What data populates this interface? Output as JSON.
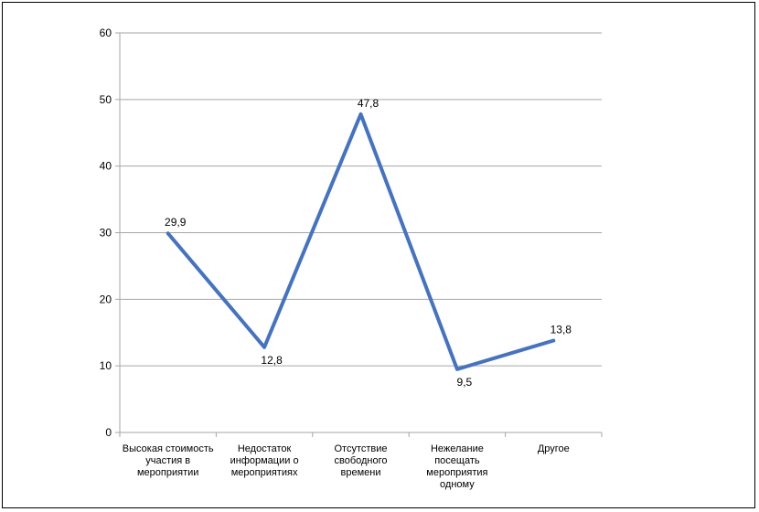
{
  "chart_data": {
    "type": "line",
    "categories": [
      [
        "Высокая стоимость",
        "участия в",
        "мероприятии"
      ],
      [
        "Недостаток",
        "информации о",
        "мероприятиях"
      ],
      [
        "Отсутствие",
        "свободного",
        "времени"
      ],
      [
        "Нежелание",
        "посещать",
        "мероприятия",
        "одному"
      ],
      [
        "Другое"
      ]
    ],
    "series": [
      {
        "values": [
          29.9,
          12.8,
          47.8,
          9.5,
          13.8
        ]
      }
    ],
    "data_labels": [
      "29,9",
      "12,8",
      "47,8",
      "9,5",
      "13,8"
    ],
    "y_ticks": [
      "0",
      "10",
      "20",
      "30",
      "40",
      "50",
      "60"
    ],
    "ylim": [
      0,
      60
    ],
    "grid": true,
    "legend": "none",
    "line_color": "#4472C4",
    "grid_color": "#A6A6A6"
  }
}
